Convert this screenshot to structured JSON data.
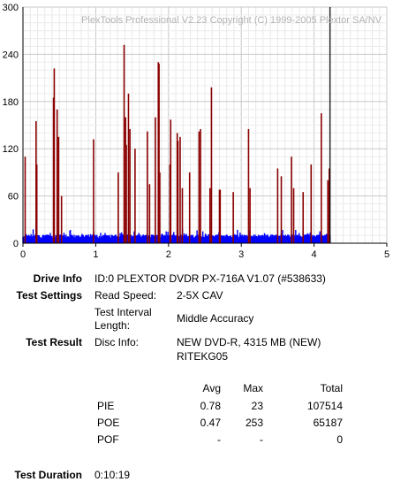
{
  "chart_data": {
    "type": "bar",
    "title": "PlexTools Professional V2.23 Copyright (C) 1999-2005 Plextor SA/NV",
    "xlabel": "",
    "ylabel": "",
    "xlim": [
      0,
      5
    ],
    "ylim": [
      0,
      300
    ],
    "x_ticks": [
      "0",
      "1",
      "2",
      "3",
      "4",
      "5"
    ],
    "y_ticks": [
      "0",
      "60",
      "120",
      "180",
      "240",
      "300"
    ],
    "grid": true,
    "end_marker_x": 4.22,
    "series": [
      {
        "color": "#8b0000",
        "x": [
          0.03,
          0.18,
          0.19,
          0.42,
          0.43,
          0.47,
          0.49,
          0.53,
          0.97,
          1.31,
          1.39,
          1.41,
          1.42,
          1.45,
          1.47,
          1.54,
          1.71,
          1.74,
          1.82,
          1.86,
          1.87,
          1.88,
          2.02,
          2.03,
          2.12,
          2.13,
          2.16,
          2.19,
          2.29,
          2.42,
          2.44,
          2.57,
          2.59,
          2.7,
          2.71,
          2.89,
          3.1,
          3.12,
          3.5,
          3.55,
          3.69,
          3.72,
          3.85,
          3.96,
          4.1,
          4.19,
          4.21
        ],
        "values": [
          110,
          155,
          100,
          185,
          222,
          170,
          135,
          60,
          132,
          90,
          252,
          160,
          125,
          190,
          145,
          120,
          142,
          75,
          160,
          230,
          228,
          90,
          100,
          157,
          140,
          130,
          135,
          70,
          90,
          142,
          145,
          70,
          198,
          68,
          68,
          65,
          145,
          70,
          95,
          85,
          110,
          70,
          65,
          100,
          165,
          80,
          95
        ]
      },
      {
        "color": "#0000ff",
        "x_range": [
          0,
          4.22
        ],
        "level": 10,
        "noise": 6
      }
    ]
  },
  "drive_info": {
    "label": "Drive Info",
    "value": "ID:0 PLEXTOR DVDR PX-716A V1.07 (#538633)"
  },
  "test_settings": {
    "label": "Test Settings",
    "read_speed_label": "Read Speed:",
    "read_speed_value": "2-5X CAV",
    "interval_label_1": "Test Interval",
    "interval_label_2": "Length:",
    "interval_value": "Middle Accuracy"
  },
  "test_result": {
    "label": "Test Result",
    "disc_info_label": "Disc Info:",
    "disc_info_line1": "NEW DVD-R, 4315 MB (NEW)",
    "disc_info_line2": "RITEKG05"
  },
  "stats": {
    "headers": [
      "Avg",
      "Max",
      "Total"
    ],
    "rows": [
      {
        "name": "PIE",
        "avg": "0.78",
        "max": "23",
        "total": "107514"
      },
      {
        "name": "POE",
        "avg": "0.47",
        "max": "253",
        "total": "65187"
      },
      {
        "name": "POF",
        "avg": "-",
        "max": "-",
        "total": "0"
      }
    ]
  },
  "test_duration": {
    "label": "Test Duration",
    "value": "0:10:19"
  }
}
